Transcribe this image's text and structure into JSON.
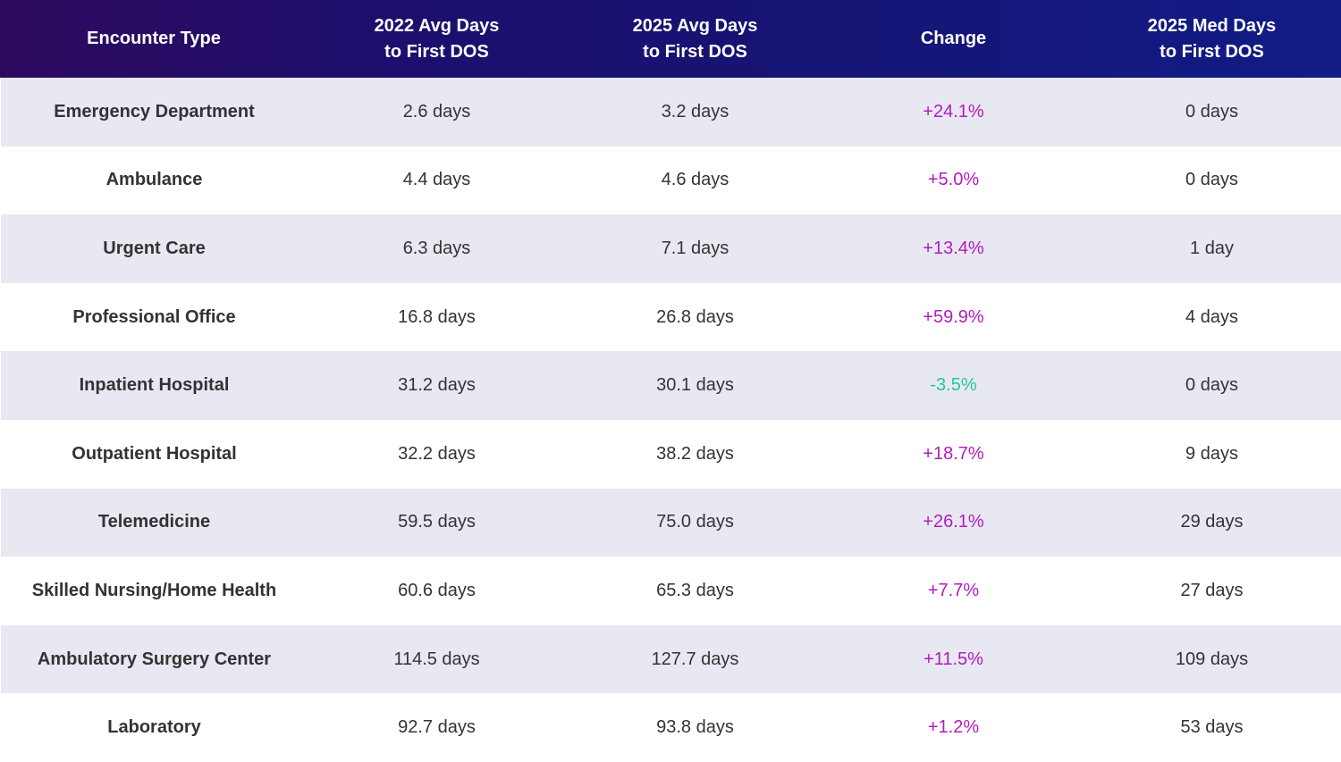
{
  "colors": {
    "header_start": "#2e0a5e",
    "header_end": "#111c86",
    "row_shade": "#e8e8f2",
    "positive_change": "#b21dbb",
    "negative_change": "#1ec8a0",
    "text": "#333333"
  },
  "chart_data": {
    "type": "table",
    "columns": [
      "Encounter Type",
      "2022 Avg Days\nto First DOS",
      "2025 Avg Days\nto First DOS",
      "Change",
      "2025 Med Days\nto First DOS"
    ],
    "rows": [
      [
        "Emergency Department",
        "2.6 days",
        "3.2 days",
        "+24.1%",
        "0 days"
      ],
      [
        "Ambulance",
        "4.4 days",
        "4.6 days",
        "+5.0%",
        "0 days"
      ],
      [
        "Urgent Care",
        "6.3 days",
        "7.1 days",
        "+13.4%",
        "1 day"
      ],
      [
        "Professional Office",
        "16.8 days",
        "26.8 days",
        "+59.9%",
        "4 days"
      ],
      [
        "Inpatient Hospital",
        "31.2 days",
        "30.1 days",
        "-3.5%",
        "0 days"
      ],
      [
        "Outpatient Hospital",
        "32.2 days",
        "38.2 days",
        "+18.7%",
        "9 days"
      ],
      [
        "Telemedicine",
        "59.5 days",
        "75.0 days",
        "+26.1%",
        "29 days"
      ],
      [
        "Skilled Nursing/Home Health",
        "60.6 days",
        "65.3 days",
        "+7.7%",
        "27 days"
      ],
      [
        "Ambulatory Surgery Center",
        "114.5 days",
        "127.7 days",
        "+11.5%",
        "109 days"
      ],
      [
        "Laboratory",
        "92.7 days",
        "93.8 days",
        "+1.2%",
        "53 days"
      ]
    ]
  }
}
